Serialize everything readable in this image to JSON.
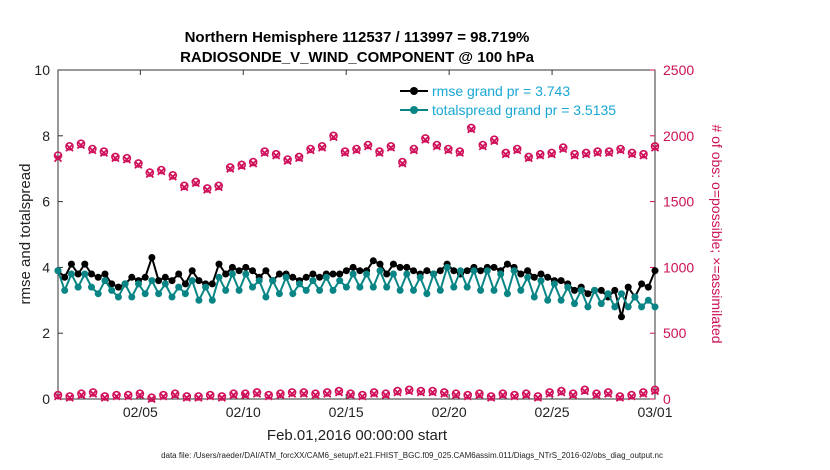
{
  "chart_data": {
    "type": "line",
    "title_line1": "Northern Hemisphere 112537 / 113997 = 98.719%",
    "title_line2": "RADIOSONDE_V_WIND_COMPONENT @ 100 hPa",
    "xlabel": "Feb.01,2016 00:00:00 start",
    "ylabel_left": "rmse and totalspread",
    "ylabel_right": "# of obs: o=possible; ×=assimilated",
    "footer": "data file: /Users/raeder/DAI/ATM_forcXX/CAM6_setup/f.e21.FHIST_BGC.f09_025.CAM6assim.011/Diags_NTrS_2016-02/obs_diag_output.nc",
    "xlim": [
      0,
      29
    ],
    "ylim_left": [
      0,
      10
    ],
    "ylim_right": [
      0,
      2500
    ],
    "x_ticks": [
      {
        "x": 4,
        "label": "02/05"
      },
      {
        "x": 9,
        "label": "02/10"
      },
      {
        "x": 14,
        "label": "02/15"
      },
      {
        "x": 19,
        "label": "02/20"
      },
      {
        "x": 24,
        "label": "02/25"
      },
      {
        "x": 29,
        "label": "03/01"
      }
    ],
    "y_ticks_left": [
      "0",
      "2",
      "4",
      "6",
      "8",
      "10"
    ],
    "y_ticks_right": [
      "0",
      "500",
      "1000",
      "1500",
      "2000",
      "2500"
    ],
    "legend": [
      {
        "label": "rmse grand pr = 3.743",
        "color": "#000000"
      },
      {
        "label": "totalspread grand pr = 3.5135",
        "color": "#0a8585"
      }
    ],
    "series": [
      {
        "name": "rmse",
        "color": "#000000",
        "axis": "left",
        "values": [
          3.9,
          3.7,
          4.1,
          3.8,
          4.1,
          3.8,
          3.7,
          3.8,
          3.5,
          3.4,
          3.5,
          3.7,
          3.6,
          3.7,
          4.3,
          3.6,
          3.7,
          3.6,
          3.8,
          3.5,
          3.9,
          3.6,
          3.5,
          3.5,
          4.1,
          3.8,
          4.0,
          3.9,
          4.0,
          3.9,
          3.7,
          3.9,
          3.6,
          3.8,
          3.8,
          3.7,
          3.6,
          3.7,
          3.8,
          3.7,
          3.8,
          3.8,
          3.8,
          3.9,
          4.0,
          3.9,
          3.9,
          4.2,
          4.1,
          3.8,
          4.1,
          4.0,
          4.0,
          3.9,
          3.8,
          3.9,
          3.8,
          3.9,
          4.1,
          3.9,
          3.8,
          3.9,
          4.0,
          3.9,
          4.0,
          4.0,
          3.9,
          4.1,
          4.0,
          3.8,
          3.9,
          3.7,
          3.8,
          3.7,
          3.6,
          3.6,
          3.5,
          3.3,
          3.4,
          3.2,
          3.3,
          3.3,
          3.1,
          3.3,
          2.5,
          3.4,
          3.1,
          3.5,
          3.4,
          3.9
        ]
      },
      {
        "name": "totalspread",
        "color": "#0a8585",
        "axis": "left",
        "values": [
          3.9,
          3.3,
          3.8,
          3.4,
          3.8,
          3.4,
          3.2,
          3.6,
          3.3,
          3.1,
          3.5,
          3.1,
          3.5,
          3.2,
          3.6,
          3.2,
          3.5,
          3.1,
          3.4,
          3.2,
          3.6,
          3.0,
          3.4,
          3.0,
          3.7,
          3.3,
          3.8,
          3.3,
          3.8,
          3.4,
          3.6,
          3.1,
          3.6,
          3.2,
          3.7,
          3.2,
          3.5,
          3.3,
          3.6,
          3.3,
          3.7,
          3.3,
          3.6,
          3.4,
          3.8,
          3.4,
          3.8,
          3.4,
          3.9,
          3.4,
          3.8,
          3.3,
          3.8,
          3.3,
          3.7,
          3.2,
          3.8,
          3.3,
          4.0,
          3.4,
          3.9,
          3.4,
          3.9,
          3.3,
          3.9,
          3.3,
          3.8,
          3.2,
          3.9,
          3.3,
          3.7,
          3.1,
          3.6,
          3.0,
          3.5,
          3.0,
          3.4,
          2.9,
          3.3,
          2.8,
          3.3,
          2.9,
          3.2,
          2.8,
          3.2,
          2.8,
          3.1,
          2.8,
          3.0,
          2.8
        ]
      },
      {
        "name": "obs possible",
        "color": "#d0105a",
        "axis": "right",
        "marker": "o",
        "values": [
          1850,
          1920,
          1940,
          1900,
          1880,
          1840,
          1830,
          1790,
          1720,
          1740,
          1700,
          1620,
          1650,
          1600,
          1620,
          1760,
          1780,
          1800,
          1880,
          1860,
          1820,
          1840,
          1900,
          1920,
          2000,
          1880,
          1900,
          1930,
          1880,
          1920,
          1800,
          1900,
          1980,
          1930,
          1900,
          1880,
          2060,
          1930,
          1970,
          1870,
          1900,
          1840,
          1860,
          1870,
          1910,
          1860,
          1870,
          1880,
          1880,
          1900,
          1870,
          1860,
          1920
        ]
      },
      {
        "name": "obs assimilated",
        "color": "#d0105a",
        "axis": "right",
        "marker": "x",
        "values": [
          1830,
          1910,
          1930,
          1890,
          1870,
          1830,
          1820,
          1780,
          1710,
          1730,
          1690,
          1610,
          1640,
          1590,
          1610,
          1750,
          1770,
          1790,
          1870,
          1850,
          1810,
          1830,
          1890,
          1910,
          1990,
          1870,
          1890,
          1920,
          1870,
          1910,
          1790,
          1890,
          1970,
          1920,
          1890,
          1870,
          2050,
          1920,
          1960,
          1860,
          1890,
          1830,
          1850,
          1860,
          1900,
          1850,
          1860,
          1870,
          1870,
          1890,
          1860,
          1850,
          1910
        ]
      },
      {
        "name": "obs possible low",
        "color": "#d0105a",
        "axis": "right",
        "marker": "o",
        "values": [
          30,
          20,
          40,
          50,
          20,
          30,
          30,
          40,
          10,
          30,
          40,
          20,
          20,
          30,
          20,
          40,
          40,
          50,
          30,
          40,
          50,
          50,
          40,
          50,
          60,
          40,
          30,
          50,
          40,
          60,
          70,
          60,
          60,
          50,
          40,
          30,
          40,
          20,
          40,
          30,
          40,
          20,
          50,
          60,
          40,
          70,
          40,
          50,
          20,
          30,
          50,
          70
        ]
      },
      {
        "name": "obs assimilated low",
        "color": "#d0105a",
        "axis": "right",
        "marker": "x",
        "values": [
          20,
          10,
          30,
          40,
          10,
          20,
          20,
          30,
          0,
          20,
          30,
          10,
          10,
          20,
          10,
          30,
          30,
          40,
          20,
          30,
          40,
          40,
          30,
          40,
          50,
          30,
          20,
          40,
          30,
          50,
          60,
          50,
          50,
          40,
          30,
          20,
          30,
          10,
          30,
          20,
          30,
          10,
          40,
          50,
          30,
          60,
          30,
          40,
          10,
          20,
          40,
          60
        ]
      }
    ]
  }
}
